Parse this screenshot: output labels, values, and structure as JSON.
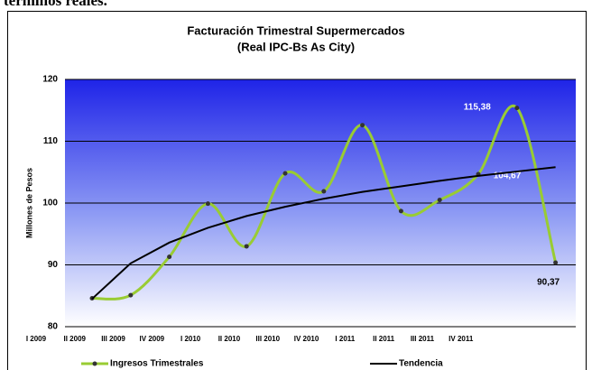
{
  "page_text": "términos reales.",
  "chart_data": {
    "type": "line",
    "title": [
      "Facturación Trimestral Supermercados",
      "(Real IPC-Bs As City)"
    ],
    "y_label": "Millones de Pesos",
    "categories": [
      "I 2009",
      "II 2009",
      "III 2009",
      "IV 2009",
      "I 2010",
      "II 2010",
      "III 2010",
      "IV 2010",
      "I 2011",
      "II 2011",
      "III 2011",
      "IV 2011",
      null
    ],
    "series": [
      {
        "name": "Ingresos Trimestrales",
        "color": "#99cc33",
        "smooth": true,
        "values": [
          84.6,
          85.1,
          91.3,
          99.9,
          93.0,
          104.8,
          101.9,
          112.6,
          98.7,
          100.5,
          104.67,
          115.38,
          90.37
        ],
        "value_labels": [
          null,
          null,
          null,
          null,
          null,
          null,
          null,
          null,
          null,
          null,
          "104,67",
          "115,38",
          "90,37"
        ]
      },
      {
        "name": "Tendencia",
        "color": "#000000",
        "values": [
          84.5,
          90.25,
          93.6,
          96.0,
          97.9,
          99.4,
          100.7,
          101.8,
          102.7,
          103.6,
          104.4,
          105.1,
          105.8
        ]
      }
    ],
    "ylim": [
      80,
      120
    ],
    "yticks": [
      80,
      90,
      100,
      110,
      120
    ],
    "grid": true,
    "legend": "bottom"
  }
}
